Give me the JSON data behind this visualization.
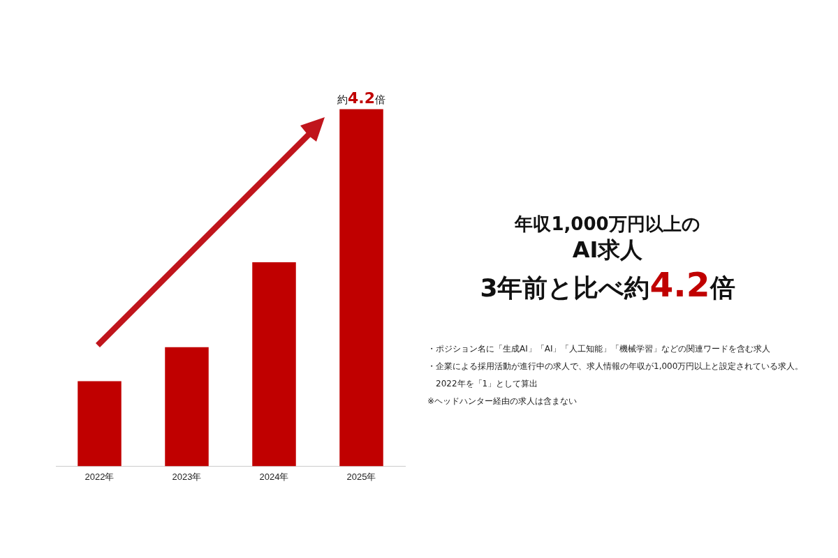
{
  "chart_data": {
    "type": "bar",
    "title": "年収1,000万円以上の\nAI求人\n3年前と比べ約4.2倍",
    "categories": [
      "2022年",
      "2023年",
      "2024年",
      "2025年"
    ],
    "values": [
      1,
      1.4,
      2.4,
      4.2
    ],
    "color": "#c00000",
    "value_labels": [
      null,
      null,
      null,
      "約4.2倍"
    ],
    "grid": false,
    "legend": false,
    "annotations": [
      "・ポジション名に「生成AI」「AI」「人工知能」「機械学習」などの関連ワードを含む求人",
      "・企業による採用活動が進行中の求人で、求人情報の年収が1,000万円以上と設定されている求人。2022年を「1」として算出",
      "※ヘッドハンター経由の求人は含まない"
    ]
  }
}
